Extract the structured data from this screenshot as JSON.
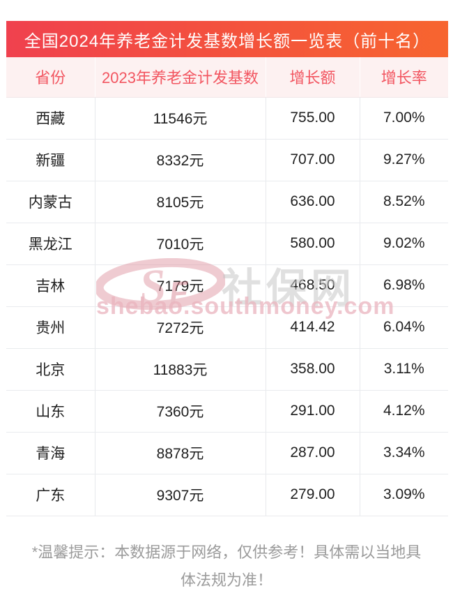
{
  "chart_data": {
    "type": "table",
    "title": "全国2024年养老金计发基数增长额一览表（前十名）",
    "headers": [
      "省份",
      "2023年养老金计发基数",
      "增长额",
      "增长率"
    ],
    "rows": [
      [
        "西藏",
        "11546元",
        "755.00",
        "7.00%"
      ],
      [
        "新疆",
        "8332元",
        "707.00",
        "9.27%"
      ],
      [
        "内蒙古",
        "8105元",
        "636.00",
        "8.52%"
      ],
      [
        "黑龙江",
        "7010元",
        "580.00",
        "9.02%"
      ],
      [
        "吉林",
        "7179元",
        "468.50",
        "6.98%"
      ],
      [
        "贵州",
        "7272元",
        "414.42",
        "6.04%"
      ],
      [
        "北京",
        "11883元",
        "358.00",
        "3.11%"
      ],
      [
        "山东",
        "7360元",
        "291.00",
        "4.12%"
      ],
      [
        "青海",
        "8878元",
        "287.00",
        "3.34%"
      ],
      [
        "广东",
        "9307元",
        "279.00",
        "3.09%"
      ]
    ],
    "column_names": [
      "province",
      "base_2023",
      "growth_amount",
      "growth_rate"
    ]
  },
  "watermark": {
    "site_name": "社保网",
    "url": "shebao.southmoney.com",
    "logo_letters": "SF"
  },
  "footer": {
    "lines": [
      "*温馨提示：本数据源于网络，仅供参考！具体需以当地具",
      "体法规为准！"
    ]
  },
  "colors": {
    "banner_gradient_start": "#f0414e",
    "banner_gradient_end": "#f7652f",
    "header_bg": "#fdf1f1",
    "header_text": "#f25560",
    "row_divider": "#e9ebee",
    "footer_text": "#9b9b9b",
    "watermark_pink": "#dd8e9b",
    "watermark_gray": "#c7c7c7"
  }
}
